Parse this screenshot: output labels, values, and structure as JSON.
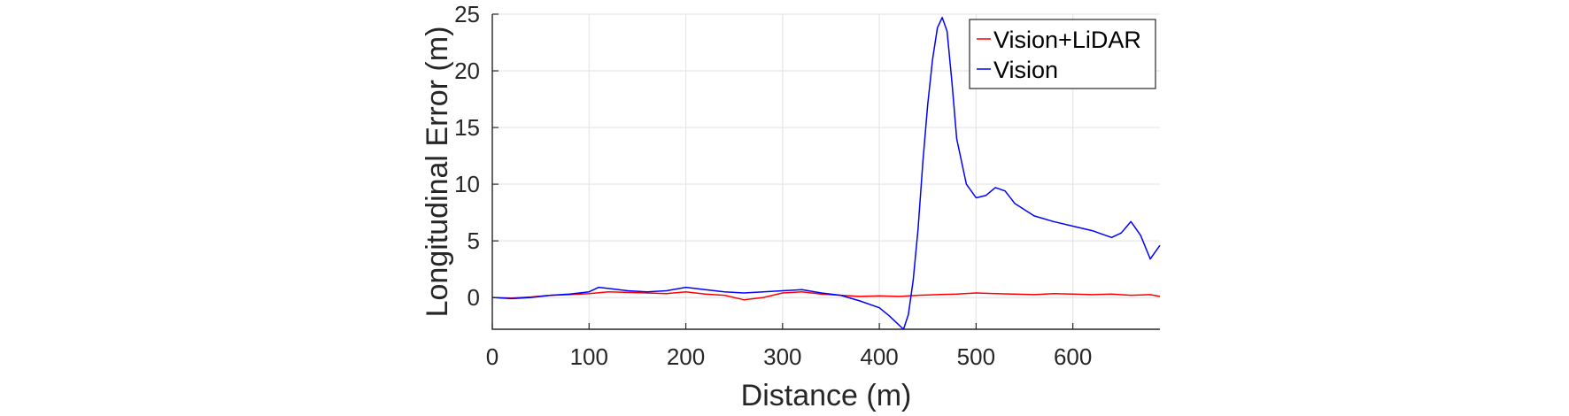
{
  "chart_data": {
    "type": "line",
    "title": "",
    "xlabel": "Distance (m)",
    "ylabel": "Longitudinal Error (m)",
    "xlim": [
      0,
      690
    ],
    "ylim": [
      -2.8,
      25
    ],
    "xticks": [
      0,
      100,
      200,
      300,
      400,
      500,
      600
    ],
    "yticks": [
      0,
      5,
      10,
      15,
      20,
      25
    ],
    "grid": true,
    "legend_position": "top-right",
    "series": [
      {
        "name": "Vision+LiDAR",
        "color": "#ff0000",
        "x": [
          0,
          20,
          40,
          60,
          80,
          100,
          120,
          140,
          160,
          180,
          200,
          220,
          240,
          260,
          280,
          300,
          320,
          340,
          360,
          380,
          400,
          420,
          440,
          460,
          480,
          500,
          520,
          540,
          560,
          580,
          600,
          620,
          640,
          660,
          680,
          690
        ],
        "y": [
          0.0,
          -0.05,
          0.05,
          0.2,
          0.25,
          0.35,
          0.5,
          0.45,
          0.4,
          0.35,
          0.5,
          0.3,
          0.2,
          -0.2,
          0.0,
          0.4,
          0.5,
          0.3,
          0.2,
          0.1,
          0.15,
          0.1,
          0.2,
          0.25,
          0.3,
          0.4,
          0.35,
          0.3,
          0.25,
          0.35,
          0.3,
          0.25,
          0.3,
          0.2,
          0.25,
          0.1
        ]
      },
      {
        "name": "Vision",
        "color": "#0000ff",
        "x": [
          0,
          20,
          40,
          60,
          80,
          100,
          110,
          120,
          140,
          160,
          180,
          200,
          220,
          240,
          260,
          280,
          300,
          320,
          340,
          360,
          380,
          400,
          410,
          420,
          425,
          430,
          435,
          440,
          445,
          450,
          455,
          460,
          465,
          470,
          475,
          480,
          490,
          500,
          510,
          520,
          530,
          540,
          560,
          580,
          600,
          620,
          640,
          650,
          660,
          670,
          680,
          690
        ],
        "y": [
          0.0,
          -0.1,
          0.0,
          0.2,
          0.3,
          0.5,
          0.9,
          0.8,
          0.6,
          0.5,
          0.6,
          0.9,
          0.7,
          0.5,
          0.4,
          0.5,
          0.6,
          0.7,
          0.4,
          0.2,
          -0.3,
          -0.9,
          -1.6,
          -2.4,
          -2.8,
          -1.5,
          1.5,
          6.0,
          12.0,
          17.0,
          21.0,
          23.8,
          24.7,
          23.5,
          19.0,
          14.0,
          10.0,
          8.8,
          9.0,
          9.7,
          9.4,
          8.3,
          7.2,
          6.7,
          6.3,
          5.9,
          5.3,
          5.7,
          6.7,
          5.5,
          3.4,
          4.6
        ]
      }
    ]
  }
}
